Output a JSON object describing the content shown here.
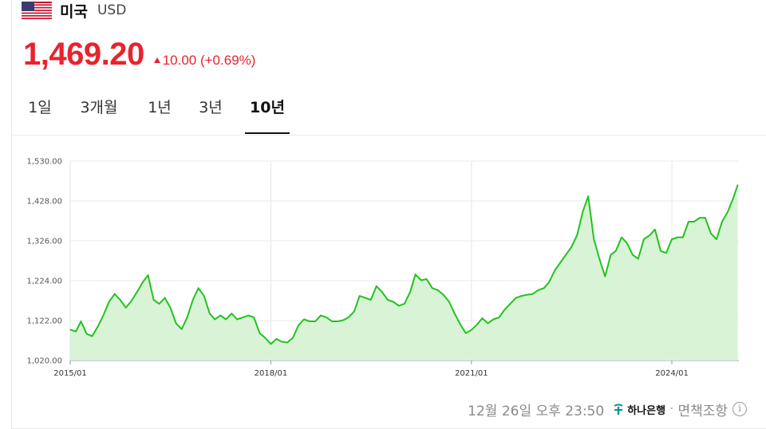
{
  "header": {
    "country": "미국",
    "currency": "USD",
    "flag_icon": "us-flag-icon"
  },
  "quote": {
    "price": "1,469.20",
    "change": "10.00 (+0.69%)",
    "direction_icon": "arrow-up-icon",
    "up_color": "#e8232e"
  },
  "tabs": [
    {
      "label": "1일",
      "active": false
    },
    {
      "label": "3개월",
      "active": false
    },
    {
      "label": "1년",
      "active": false
    },
    {
      "label": "3년",
      "active": false
    },
    {
      "label": "10년",
      "active": true
    }
  ],
  "chart_data": {
    "type": "area",
    "title": "",
    "xlabel": "",
    "ylabel": "",
    "ylim": [
      1020,
      1530
    ],
    "y_ticks": [
      "1,530.00",
      "1,428.00",
      "1,326.00",
      "1,224.00",
      "1,122.00",
      "1,020.00"
    ],
    "y_tick_values": [
      1530,
      1428,
      1326,
      1224,
      1122,
      1020
    ],
    "x_range": [
      "2015-01-01",
      "2025-01-01"
    ],
    "x_ticks": [
      "2015/01",
      "2018/01",
      "2021/01",
      "2024/01"
    ],
    "x_tick_dates": [
      "2015-01-01",
      "2018-01-01",
      "2021-01-01",
      "2024-01-01"
    ],
    "grid": true,
    "line_color": "#22c31e",
    "fill_color": "#d9f3d6",
    "series": [
      {
        "points": [
          [
            "2015-01-01",
            1099
          ],
          [
            "2015-02-01",
            1094
          ],
          [
            "2015-03-01",
            1120
          ],
          [
            "2015-04-01",
            1088
          ],
          [
            "2015-05-01",
            1082
          ],
          [
            "2015-06-01",
            1107
          ],
          [
            "2015-07-01",
            1135
          ],
          [
            "2015-08-01",
            1170
          ],
          [
            "2015-09-01",
            1190
          ],
          [
            "2015-10-01",
            1175
          ],
          [
            "2015-11-01",
            1155
          ],
          [
            "2015-12-01",
            1172
          ],
          [
            "2016-01-01",
            1195
          ],
          [
            "2016-02-01",
            1220
          ],
          [
            "2016-03-01",
            1238
          ],
          [
            "2016-04-01",
            1175
          ],
          [
            "2016-05-01",
            1165
          ],
          [
            "2016-06-01",
            1180
          ],
          [
            "2016-07-01",
            1155
          ],
          [
            "2016-08-01",
            1115
          ],
          [
            "2016-09-01",
            1100
          ],
          [
            "2016-10-01",
            1130
          ],
          [
            "2016-11-01",
            1175
          ],
          [
            "2016-12-01",
            1205
          ],
          [
            "2017-01-01",
            1185
          ],
          [
            "2017-02-01",
            1140
          ],
          [
            "2017-03-01",
            1125
          ],
          [
            "2017-04-01",
            1135
          ],
          [
            "2017-05-01",
            1125
          ],
          [
            "2017-06-01",
            1140
          ],
          [
            "2017-07-01",
            1125
          ],
          [
            "2017-08-01",
            1130
          ],
          [
            "2017-09-01",
            1135
          ],
          [
            "2017-10-01",
            1130
          ],
          [
            "2017-11-01",
            1090
          ],
          [
            "2017-12-01",
            1078
          ],
          [
            "2018-01-01",
            1062
          ],
          [
            "2018-02-01",
            1075
          ],
          [
            "2018-03-01",
            1068
          ],
          [
            "2018-04-01",
            1066
          ],
          [
            "2018-05-01",
            1078
          ],
          [
            "2018-06-01",
            1110
          ],
          [
            "2018-07-01",
            1125
          ],
          [
            "2018-08-01",
            1120
          ],
          [
            "2018-09-01",
            1120
          ],
          [
            "2018-10-01",
            1135
          ],
          [
            "2018-11-01",
            1130
          ],
          [
            "2018-12-01",
            1120
          ],
          [
            "2019-01-01",
            1120
          ],
          [
            "2019-02-01",
            1123
          ],
          [
            "2019-03-01",
            1130
          ],
          [
            "2019-04-01",
            1145
          ],
          [
            "2019-05-01",
            1185
          ],
          [
            "2019-06-01",
            1180
          ],
          [
            "2019-07-01",
            1175
          ],
          [
            "2019-08-01",
            1210
          ],
          [
            "2019-09-01",
            1195
          ],
          [
            "2019-10-01",
            1175
          ],
          [
            "2019-11-01",
            1170
          ],
          [
            "2019-12-01",
            1160
          ],
          [
            "2020-01-01",
            1165
          ],
          [
            "2020-02-01",
            1195
          ],
          [
            "2020-03-01",
            1240
          ],
          [
            "2020-04-01",
            1225
          ],
          [
            "2020-05-01",
            1228
          ],
          [
            "2020-06-01",
            1205
          ],
          [
            "2020-07-01",
            1200
          ],
          [
            "2020-08-01",
            1188
          ],
          [
            "2020-09-01",
            1170
          ],
          [
            "2020-10-01",
            1140
          ],
          [
            "2020-11-01",
            1112
          ],
          [
            "2020-12-01",
            1090
          ],
          [
            "2021-01-01",
            1098
          ],
          [
            "2021-02-01",
            1112
          ],
          [
            "2021-03-01",
            1128
          ],
          [
            "2021-04-01",
            1115
          ],
          [
            "2021-05-01",
            1125
          ],
          [
            "2021-06-01",
            1130
          ],
          [
            "2021-07-01",
            1150
          ],
          [
            "2021-08-01",
            1165
          ],
          [
            "2021-09-01",
            1180
          ],
          [
            "2021-10-01",
            1185
          ],
          [
            "2021-11-01",
            1188
          ],
          [
            "2021-12-01",
            1190
          ],
          [
            "2022-01-01",
            1200
          ],
          [
            "2022-02-01",
            1205
          ],
          [
            "2022-03-01",
            1220
          ],
          [
            "2022-04-01",
            1250
          ],
          [
            "2022-05-01",
            1270
          ],
          [
            "2022-06-01",
            1290
          ],
          [
            "2022-07-01",
            1310
          ],
          [
            "2022-08-01",
            1340
          ],
          [
            "2022-09-01",
            1400
          ],
          [
            "2022-10-01",
            1440
          ],
          [
            "2022-11-01",
            1330
          ],
          [
            "2022-12-01",
            1280
          ],
          [
            "2023-01-01",
            1235
          ],
          [
            "2023-02-01",
            1290
          ],
          [
            "2023-03-01",
            1300
          ],
          [
            "2023-04-01",
            1335
          ],
          [
            "2023-05-01",
            1320
          ],
          [
            "2023-06-01",
            1290
          ],
          [
            "2023-07-01",
            1280
          ],
          [
            "2023-08-01",
            1330
          ],
          [
            "2023-09-01",
            1340
          ],
          [
            "2023-10-01",
            1355
          ],
          [
            "2023-11-01",
            1300
          ],
          [
            "2023-12-01",
            1295
          ],
          [
            "2024-01-01",
            1330
          ],
          [
            "2024-02-01",
            1335
          ],
          [
            "2024-03-01",
            1335
          ],
          [
            "2024-04-01",
            1375
          ],
          [
            "2024-05-01",
            1375
          ],
          [
            "2024-06-01",
            1385
          ],
          [
            "2024-07-01",
            1385
          ],
          [
            "2024-08-01",
            1345
          ],
          [
            "2024-09-01",
            1330
          ],
          [
            "2024-10-01",
            1375
          ],
          [
            "2024-11-01",
            1400
          ],
          [
            "2024-12-01",
            1435
          ],
          [
            "2024-12-26",
            1469
          ]
        ]
      }
    ]
  },
  "footer": {
    "timestamp": "12월 26일 오후 23:50",
    "bank_icon": "hana-bank-logo-icon",
    "bank_name": "하나은행",
    "separator": "·",
    "disclaimer": "면책조항",
    "info_icon": "info-icon",
    "info_glyph": "i"
  }
}
